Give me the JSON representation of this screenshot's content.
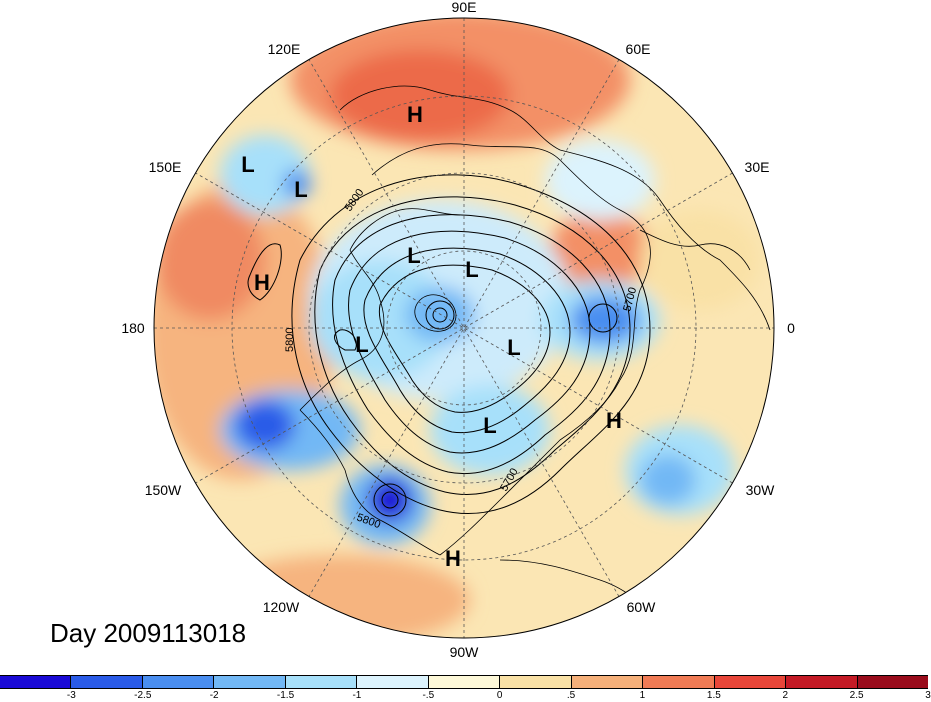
{
  "title": "Day 2009113018",
  "map": {
    "projection": "north-polar-stereographic",
    "longitude_labels": [
      {
        "text": "90E"
      },
      {
        "text": "60E"
      },
      {
        "text": "30E"
      },
      {
        "text": "0"
      },
      {
        "text": "30W"
      },
      {
        "text": "60W"
      },
      {
        "text": "90W"
      },
      {
        "text": "120W"
      },
      {
        "text": "150W"
      },
      {
        "text": "180"
      },
      {
        "text": "150E"
      },
      {
        "text": "120E"
      }
    ],
    "pressure_centers": [
      {
        "type": "H",
        "text": "H"
      },
      {
        "type": "L",
        "text": "L"
      },
      {
        "type": "L",
        "text": "L"
      },
      {
        "type": "H",
        "text": "H"
      },
      {
        "type": "L",
        "text": "L"
      },
      {
        "type": "L",
        "text": "L"
      },
      {
        "type": "L",
        "text": "L"
      },
      {
        "type": "L",
        "text": "L"
      },
      {
        "type": "H",
        "text": "H"
      },
      {
        "type": "L",
        "text": "L"
      },
      {
        "type": "H",
        "text": "H"
      }
    ],
    "contour_labels": [
      {
        "text": "5800"
      },
      {
        "text": "5800"
      },
      {
        "text": "5700"
      },
      {
        "text": "5700"
      },
      {
        "text": "5800"
      }
    ]
  },
  "colorbar": {
    "colors": [
      "#1a0ad6",
      "#2a5be8",
      "#4a8ef0",
      "#72b8f5",
      "#a7e0fa",
      "#dcf3fd",
      "#fdf8d8",
      "#f9e1a6",
      "#f5b07a",
      "#f07b55",
      "#e84639",
      "#c41a25",
      "#9a0c1c"
    ],
    "tick_labels": [
      "-3",
      "-2.5",
      "-2",
      "-1.5",
      "-1",
      "-.5",
      "0",
      ".5",
      "1",
      "1.5",
      "2",
      "2.5",
      "3"
    ]
  }
}
